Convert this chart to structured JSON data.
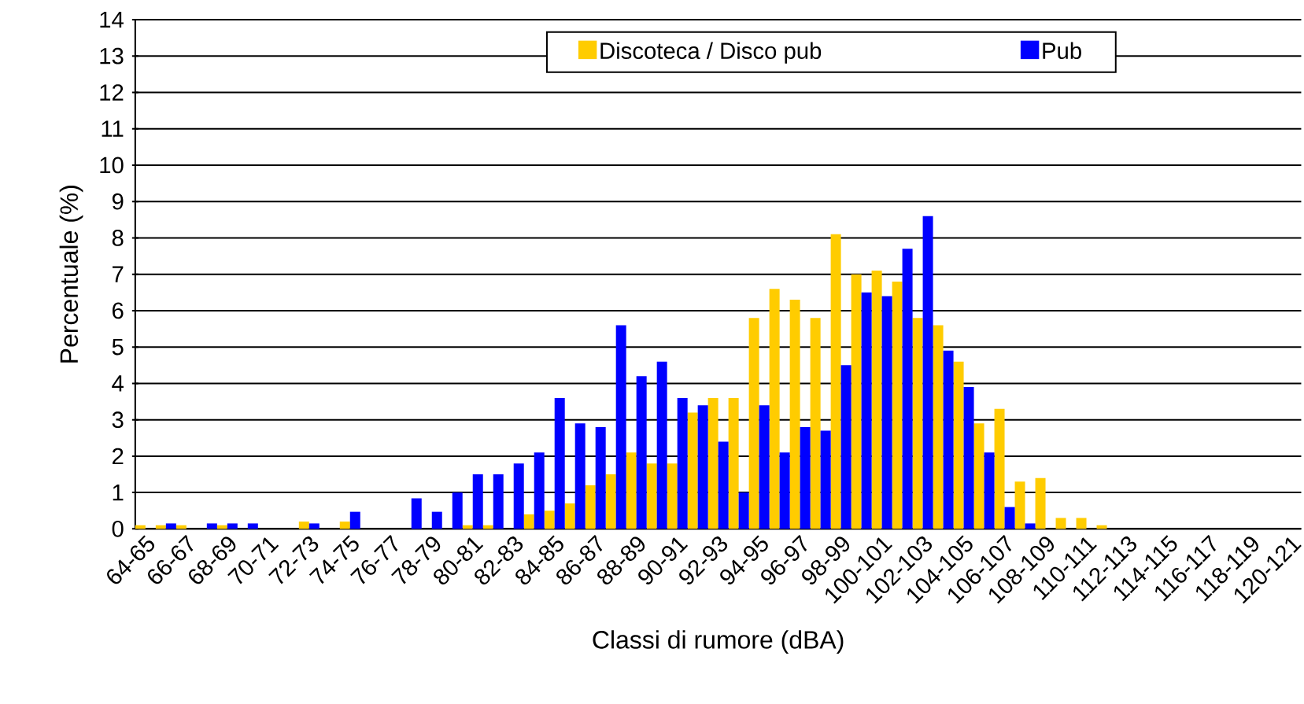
{
  "chart_data": {
    "type": "bar",
    "xlabel": "Classi di rumore (dBA)",
    "ylabel": "Percentuale (%)",
    "categories": [
      "64-65",
      null,
      "66-67",
      null,
      "68-69",
      null,
      "70-71",
      null,
      "72-73",
      null,
      "74-75",
      null,
      "76-77",
      null,
      "78-79",
      null,
      "80-81",
      null,
      "82-83",
      null,
      "84-85",
      null,
      "86-87",
      null,
      "88-89",
      null,
      "90-91",
      null,
      "92-93",
      null,
      "94-95",
      null,
      "96-97",
      null,
      "98-99",
      null,
      "100-101",
      null,
      "102-103",
      null,
      "104-105",
      null,
      "106-107",
      null,
      "108-109",
      null,
      "110-111",
      null,
      "112-113",
      null,
      "114-115",
      null,
      "116-117",
      null,
      "118-119",
      null,
      "120-121"
    ],
    "series": [
      {
        "name": "Discoteca / Disco pub",
        "color": "#ffcc00",
        "values": [
          0.1,
          0.1,
          0.1,
          0,
          0.1,
          0,
          0,
          0,
          0.2,
          0,
          0.2,
          0,
          0,
          0,
          0,
          0,
          0.1,
          0.1,
          0,
          0.4,
          0.5,
          0.7,
          1.2,
          1.5,
          2.1,
          1.8,
          1.8,
          3.2,
          3.6,
          3.6,
          5.8,
          6.6,
          6.3,
          5.8,
          8.1,
          7.0,
          7.1,
          6.8,
          5.8,
          5.6,
          4.6,
          2.9,
          3.3,
          1.3,
          1.4,
          0.3,
          0.3,
          0.1,
          0,
          0,
          0,
          0,
          0,
          0,
          0,
          0,
          0
        ]
      },
      {
        "name": "Pub",
        "color": "#0000ff",
        "values": [
          0,
          0.15,
          0,
          0.15,
          0.15,
          0.15,
          0,
          0,
          0.15,
          0,
          0.47,
          0,
          0,
          0.84,
          0.47,
          1.0,
          1.5,
          1.5,
          1.8,
          2.1,
          3.6,
          2.9,
          2.8,
          5.6,
          4.2,
          4.6,
          3.6,
          3.4,
          2.4,
          1.0,
          3.4,
          2.1,
          2.8,
          2.7,
          4.5,
          6.5,
          6.4,
          7.7,
          8.6,
          4.9,
          3.9,
          2.1,
          0.6,
          0.15,
          0,
          0,
          0,
          0,
          0,
          0,
          0,
          0,
          0,
          0,
          0,
          0,
          0
        ]
      }
    ],
    "ylim": [
      0,
      14
    ],
    "yticks": [
      0,
      1,
      2,
      3,
      4,
      5,
      6,
      7,
      8,
      9,
      10,
      11,
      12,
      13,
      14
    ],
    "grid": "y",
    "legend": "top"
  }
}
